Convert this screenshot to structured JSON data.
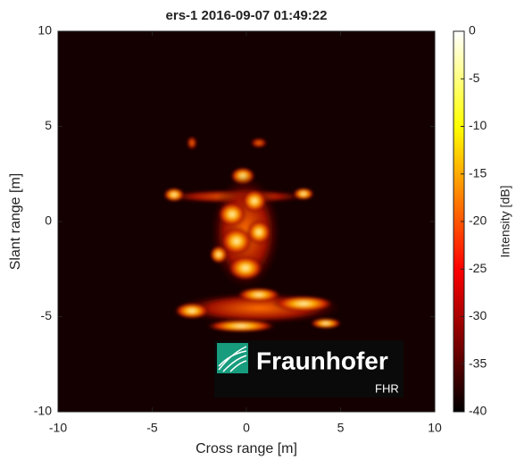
{
  "chart_data": {
    "type": "image",
    "title": "ers-1 2016-09-07 01:49:22",
    "xlabel": "Cross range [m]",
    "ylabel": "Slant range [m]",
    "xlim": [
      -10,
      10
    ],
    "ylim": [
      -10,
      10
    ],
    "xticks": [
      -10,
      -5,
      0,
      5,
      10
    ],
    "yticks": [
      -10,
      -5,
      0,
      5,
      10
    ],
    "colorbar": {
      "label": "Intensity [dB]",
      "lim": [
        -40,
        0
      ],
      "ticks": [
        0,
        -5,
        -10,
        -15,
        -20,
        -25,
        -30,
        -35,
        -40
      ],
      "colormap": "hot"
    },
    "logo": {
      "name": "Fraunhofer",
      "unit": "FHR"
    }
  }
}
